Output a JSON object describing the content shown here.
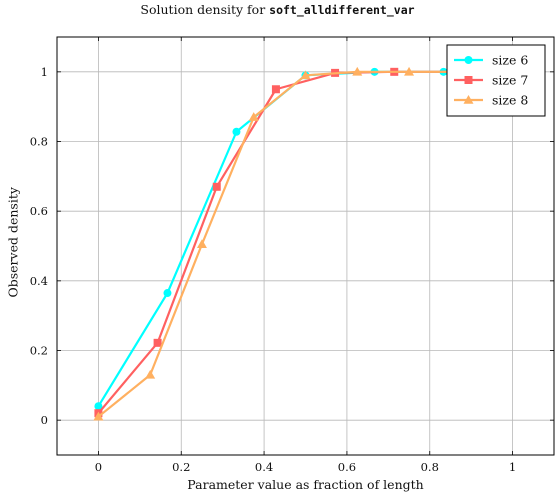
{
  "chart_data": {
    "type": "line",
    "title_prefix": "Solution density for ",
    "title_code": "soft_alldifferent_var",
    "xlabel": "Parameter value as fraction of length",
    "ylabel": "Observed density",
    "xlim": [
      -0.1,
      1.1
    ],
    "ylim": [
      -0.1,
      1.1
    ],
    "x_ticks": [
      0,
      0.2,
      0.4,
      0.6,
      0.8,
      1
    ],
    "y_ticks": [
      0,
      0.2,
      0.4,
      0.6,
      0.8,
      1
    ],
    "x_tick_labels": [
      "0",
      "0.2",
      "0.4",
      "0.6",
      "0.8",
      "1"
    ],
    "y_tick_labels": [
      "0",
      "0.2",
      "0.4",
      "0.6",
      "0.8",
      "1"
    ],
    "grid": true,
    "legend_position": "top-right",
    "series": [
      {
        "name": "size 6",
        "color": "#00ffff",
        "marker": "circle",
        "x": [
          0,
          0.1667,
          0.3333,
          0.5,
          0.6667,
          0.8333
        ],
        "y": [
          0.04,
          0.365,
          0.828,
          0.99,
          1.0,
          1.0
        ]
      },
      {
        "name": "size 7",
        "color": "#ff6060",
        "marker": "square",
        "x": [
          0,
          0.1429,
          0.2857,
          0.4286,
          0.5714,
          0.7143,
          0.8571
        ],
        "y": [
          0.02,
          0.222,
          0.67,
          0.95,
          0.997,
          1.0,
          1.0
        ]
      },
      {
        "name": "size 8",
        "color": "#ffb060",
        "marker": "triangle",
        "x": [
          0,
          0.125,
          0.25,
          0.375,
          0.5,
          0.625,
          0.75,
          0.875
        ],
        "y": [
          0.01,
          0.13,
          0.505,
          0.87,
          0.99,
          1.0,
          1.0,
          1.0
        ]
      }
    ]
  }
}
